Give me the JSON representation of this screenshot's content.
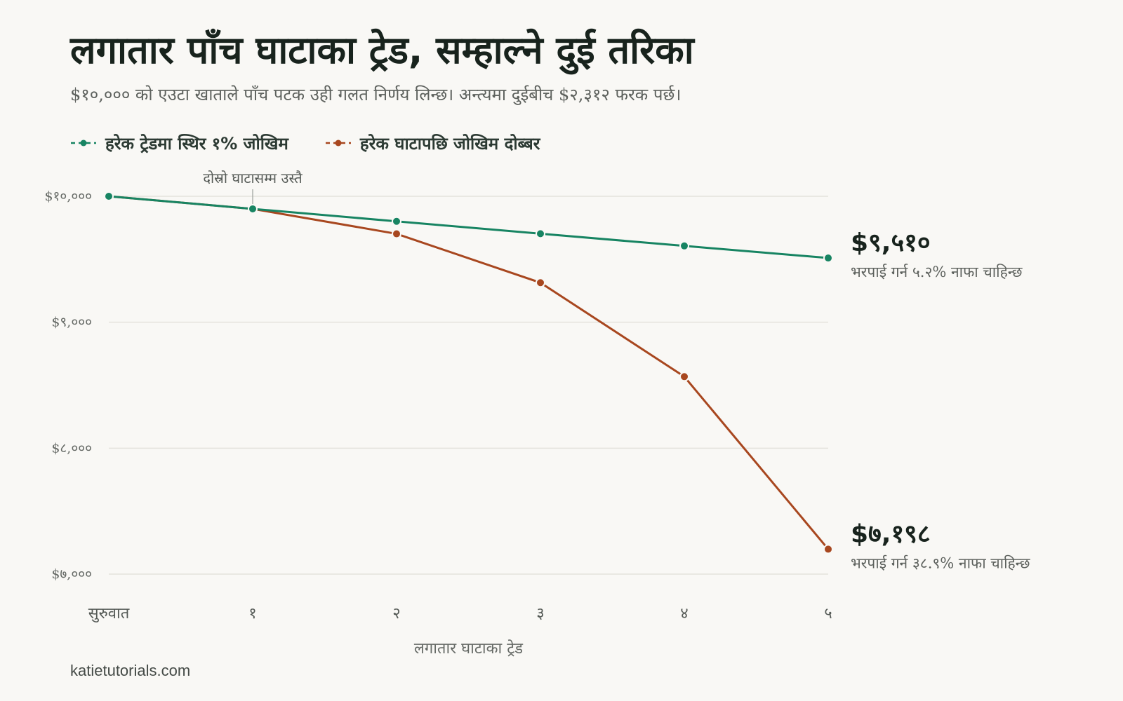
{
  "title": "लगातार पाँच घाटाका ट्रेड, सम्हाल्ने दुई तरिका",
  "subtitle": "$१०,००० को एउटा खाताले पाँच पटक उही गलत निर्णय लिन्छ। अन्त्यमा दुईबीच $२,३१२ फरक पर्छ।",
  "source": "katietutorials.com",
  "chart_data": {
    "type": "line",
    "x": [
      0,
      1,
      2,
      3,
      4,
      5
    ],
    "x_tick_labels": [
      "सुरुवात",
      "१",
      "२",
      "३",
      "४",
      "५"
    ],
    "xlabel": "लगातार घाटाका ट्रेड",
    "ylabel": "",
    "ylim": [
      7000,
      10000
    ],
    "y_ticks": [
      10000,
      9000,
      8000,
      7000
    ],
    "y_tick_labels": [
      "$१०,०००",
      "$९,०००",
      "$८,०००",
      "$७,०००"
    ],
    "grid": "horizontal",
    "legend": "top-left",
    "series": [
      {
        "name": "हरेक ट्रेडमा स्थिर १% जोखिम",
        "color": "#178462",
        "values": [
          10000,
          9900,
          9801,
          9703,
          9606,
          9510
        ],
        "end_label": "$९,५१०",
        "end_note": "भरपाई गर्न ५.२% नाफा चाहिन्छ"
      },
      {
        "name": "हरेक घाटापछि जोखिम दोब्बर",
        "color": "#a8471f",
        "values": [
          10000,
          9900,
          9702,
          9314,
          8568,
          7198
        ],
        "end_label": "$७,१९८",
        "end_note": "भरपाई गर्न ३८.९% नाफा चाहिन्छ"
      }
    ],
    "annotations": [
      {
        "x": 1,
        "y": 9900,
        "text": "दोस्रो घाटासम्म उस्तै"
      }
    ]
  }
}
